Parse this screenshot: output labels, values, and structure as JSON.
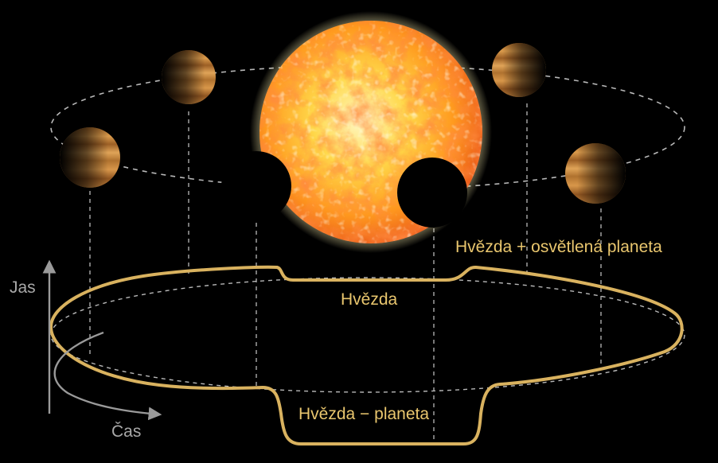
{
  "labels": {
    "star_plus_lit_planet": "Hvězda + osvětlená planeta",
    "star": "Hvězda",
    "star_minus_planet": "Hvězda − planeta",
    "y_axis": "Jas",
    "x_axis": "Čas"
  },
  "colors": {
    "background": "#000000",
    "light_curve": "#d9b25f",
    "label_text": "#e9c66e",
    "axis": "#9a9a9a",
    "axis_text": "#a8a8a8",
    "guide_lines": "#b8b8b8",
    "star_core": "#fff3a8",
    "star_mid": "#ffbb2a",
    "star_edge": "#e8501b",
    "planet_lit": "#c8853a",
    "planet_dark": "#3a1f0c"
  },
  "icons": {
    "y_axis_arrow": "arrow-up-icon",
    "x_axis_arrow": "curved-arrow-icon"
  }
}
